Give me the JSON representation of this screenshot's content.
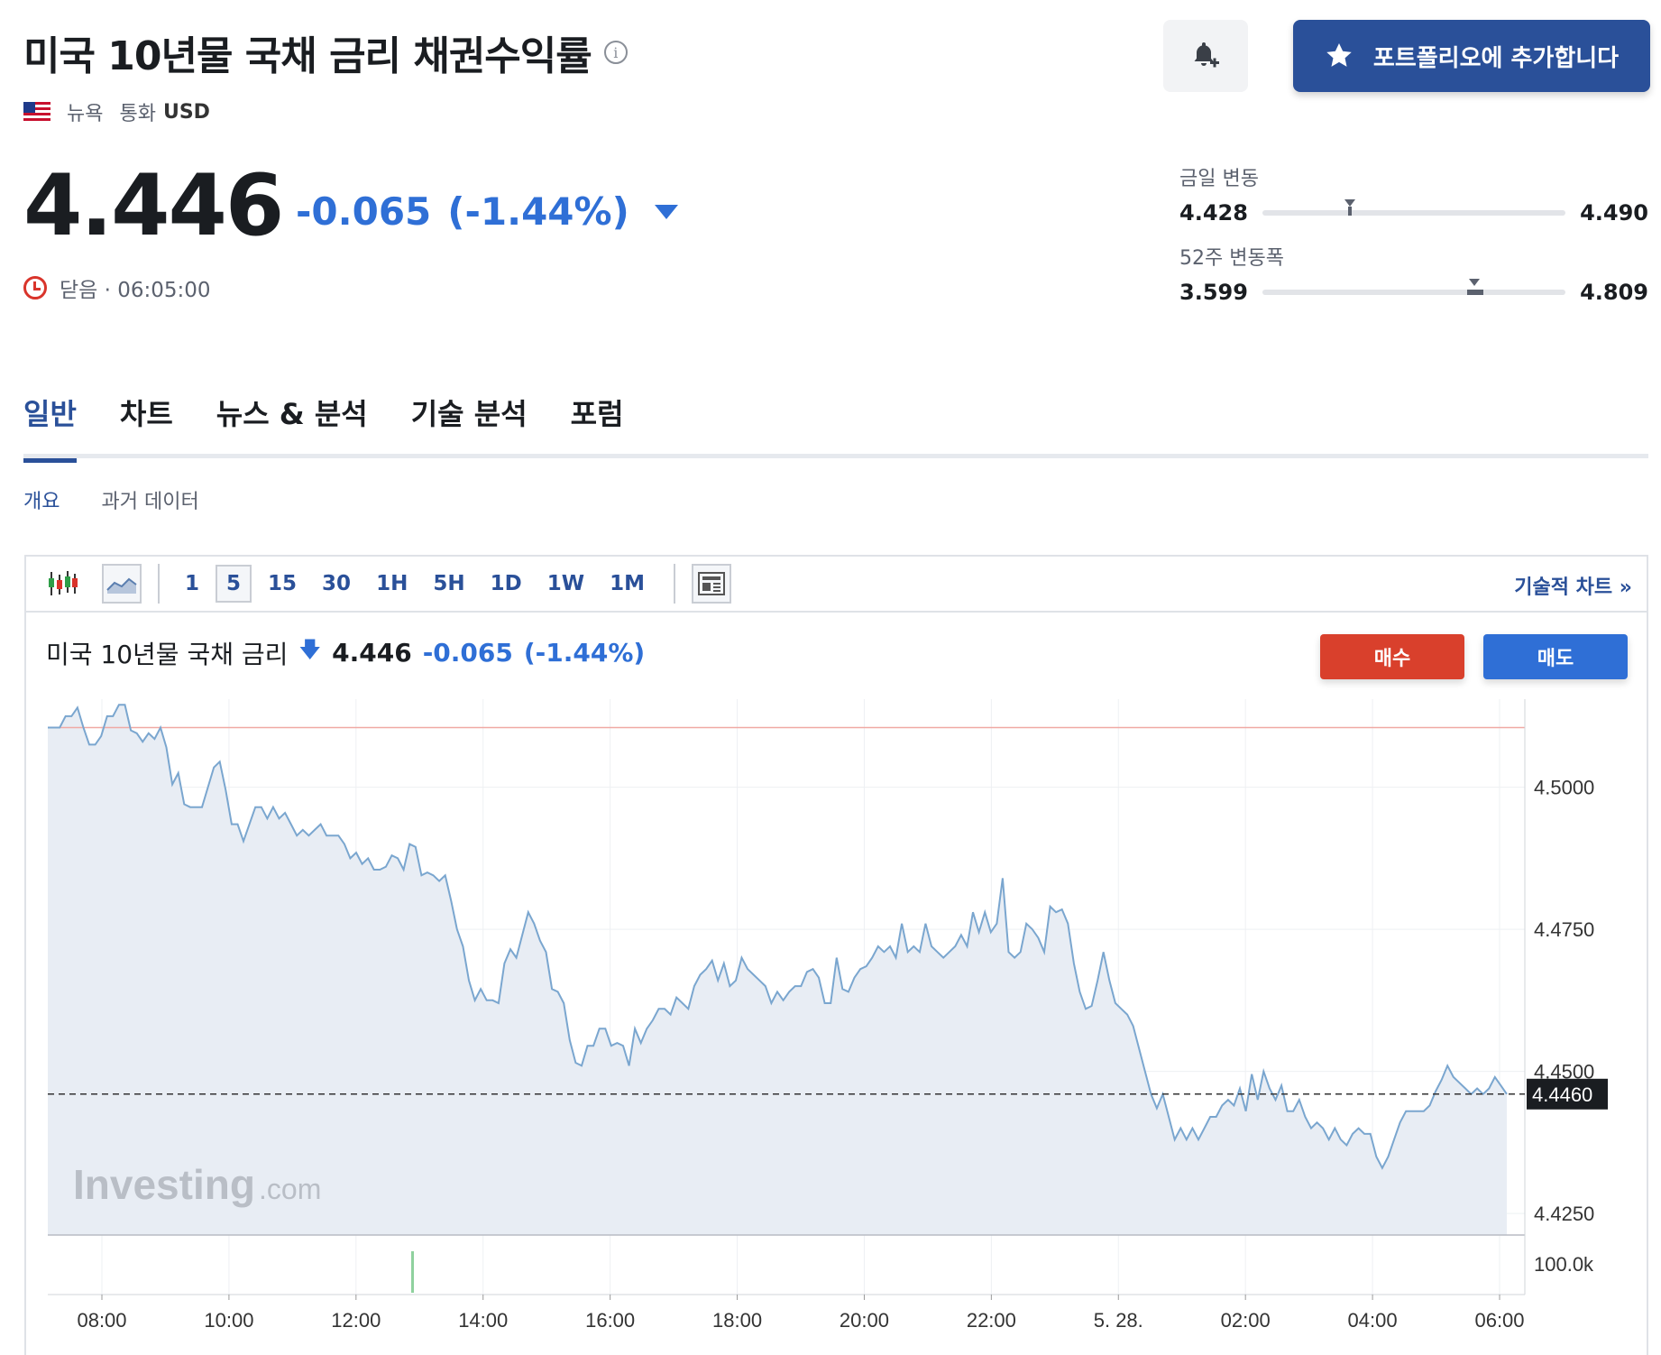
{
  "header": {
    "title": "미국 10년물 국채 금리 채권수익률",
    "exchange": "뉴욕",
    "currency_label": "통화",
    "currency": "USD"
  },
  "actions": {
    "bell_icon": "bell-plus-icon",
    "portfolio_label": "포트폴리오에 추가합니다"
  },
  "quote": {
    "price": "4.446",
    "change": "-0.065",
    "change_pct": "(-1.44%)",
    "status": "닫음 · 06:05:00",
    "change_color": "#2f6fd6"
  },
  "ranges": {
    "day": {
      "label": "금일 변동",
      "low": "4.428",
      "high": "4.490",
      "current_fraction": 0.29
    },
    "week52": {
      "label": "52주 변동폭",
      "low": "3.599",
      "high": "4.809",
      "current_fraction": 0.7
    }
  },
  "tabs": [
    "일반",
    "차트",
    "뉴스 & 분석",
    "기술 분석",
    "포럼"
  ],
  "subtabs": [
    "개요",
    "과거 데이터"
  ],
  "toolbar": {
    "intervals": [
      "1",
      "5",
      "15",
      "30",
      "1H",
      "5H",
      "1D",
      "1W",
      "1M"
    ],
    "active_interval": "5",
    "tech_chart_label": "기술적 차트 »"
  },
  "chart_header": {
    "name": "미국 10년물 국채 금리",
    "price": "4.446",
    "change": "-0.065",
    "change_pct": "(-1.44%)",
    "buy_label": "매수",
    "sell_label": "매도"
  },
  "watermark": {
    "brand": "Investing",
    "suffix": ".com"
  },
  "chart_data": {
    "type": "area",
    "x_tick_labels": [
      "08:00",
      "10:00",
      "12:00",
      "14:00",
      "16:00",
      "18:00",
      "20:00",
      "22:00",
      "5. 28.",
      "02:00",
      "04:00",
      "06:00"
    ],
    "y_tick_labels": [
      "4.5000",
      "4.4750",
      "4.4500",
      "4.4250"
    ],
    "y_ticks": [
      4.5,
      4.475,
      4.45,
      4.425
    ],
    "ylim": [
      4.4212,
      4.5155
    ],
    "reference_line": 4.5105,
    "current_value": 4.446,
    "current_label": "4.4460",
    "volume_axis_label": "100.0k",
    "line_color": "#7aa6cf",
    "fill_color": "#e8edf4",
    "values": [
      4.5105,
      4.5105,
      4.5105,
      4.5125,
      4.5125,
      4.514,
      4.5105,
      4.5075,
      4.5075,
      4.509,
      4.5125,
      4.5125,
      4.5145,
      4.5145,
      4.51,
      4.5095,
      4.508,
      4.5095,
      4.5085,
      4.5105,
      4.507,
      4.5005,
      4.5025,
      4.497,
      4.4965,
      4.4965,
      4.4965,
      4.5,
      4.5035,
      4.5045,
      4.4995,
      4.4935,
      4.4935,
      4.4905,
      4.4935,
      4.4965,
      4.4965,
      4.4945,
      4.4965,
      4.4945,
      4.4955,
      4.4935,
      4.4915,
      4.4925,
      4.4915,
      4.4925,
      4.4935,
      4.4915,
      4.4915,
      4.4915,
      4.49,
      4.4875,
      4.4885,
      4.4865,
      4.4875,
      4.4855,
      4.4855,
      4.486,
      4.488,
      4.4875,
      4.4855,
      4.49,
      4.4895,
      4.4845,
      4.485,
      4.4845,
      4.4835,
      4.4845,
      4.48,
      4.475,
      4.472,
      4.466,
      4.4625,
      4.4645,
      4.4625,
      4.4625,
      4.462,
      4.469,
      4.4715,
      4.47,
      4.474,
      4.478,
      4.476,
      4.473,
      4.471,
      4.4645,
      4.464,
      4.462,
      4.4555,
      4.4515,
      4.451,
      4.4545,
      4.4545,
      4.4575,
      4.4575,
      4.4545,
      4.455,
      4.4545,
      4.451,
      4.4575,
      4.455,
      4.4575,
      4.459,
      4.461,
      4.461,
      4.46,
      4.463,
      4.462,
      4.461,
      4.465,
      4.467,
      4.468,
      4.4695,
      4.466,
      4.469,
      4.465,
      4.466,
      4.47,
      4.468,
      4.467,
      4.466,
      4.465,
      4.462,
      4.464,
      4.4625,
      4.464,
      4.465,
      4.465,
      4.4675,
      4.468,
      4.4665,
      4.462,
      4.462,
      4.47,
      4.4645,
      4.464,
      4.4665,
      4.468,
      4.4685,
      4.47,
      4.472,
      4.471,
      4.472,
      4.47,
      4.476,
      4.471,
      4.472,
      4.471,
      4.476,
      4.472,
      4.471,
      4.47,
      4.471,
      4.472,
      4.474,
      4.472,
      4.478,
      4.4745,
      4.478,
      4.4745,
      4.476,
      4.484,
      4.471,
      4.47,
      4.471,
      4.476,
      4.475,
      4.4735,
      4.471,
      4.479,
      4.478,
      4.4785,
      4.476,
      4.469,
      4.464,
      4.461,
      4.4615,
      4.466,
      4.471,
      4.466,
      4.462,
      4.461,
      4.46,
      4.458,
      4.454,
      4.45,
      4.446,
      4.4435,
      4.446,
      4.442,
      4.438,
      4.44,
      4.438,
      4.44,
      4.438,
      4.44,
      4.442,
      4.442,
      4.444,
      4.445,
      4.444,
      4.447,
      4.443,
      4.4495,
      4.445,
      4.45,
      4.447,
      4.445,
      4.4475,
      4.443,
      4.443,
      4.445,
      4.442,
      4.44,
      4.441,
      4.44,
      4.438,
      4.44,
      4.438,
      4.437,
      4.439,
      4.44,
      4.439,
      4.439,
      4.435,
      4.433,
      4.435,
      4.438,
      4.441,
      4.443,
      4.443,
      4.443,
      4.443,
      4.444,
      4.4465,
      4.4485,
      4.451,
      4.449,
      4.448,
      4.447,
      4.446,
      4.447,
      4.446,
      4.447,
      4.449,
      4.4475,
      4.446
    ]
  }
}
